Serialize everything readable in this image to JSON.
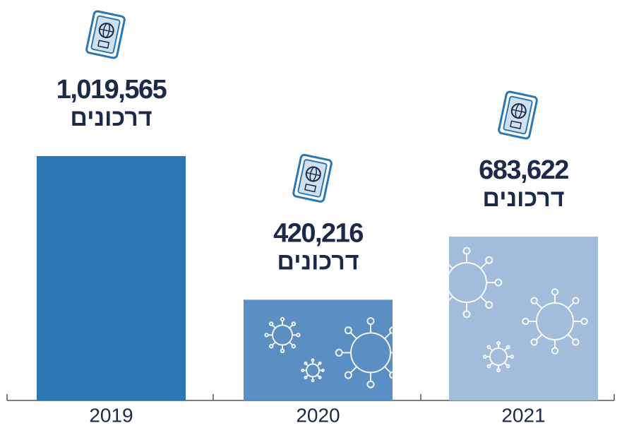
{
  "chart_data": {
    "type": "bar",
    "categories": [
      "2019",
      "2020",
      "2021"
    ],
    "values": [
      1019565,
      420216,
      683622
    ],
    "value_labels": [
      "1,019,565",
      "420,216",
      "683,622"
    ],
    "unit_label": "דרכונים",
    "colors": [
      "#2a77b3",
      "#5b8fc4",
      "#a3bcdb"
    ]
  }
}
